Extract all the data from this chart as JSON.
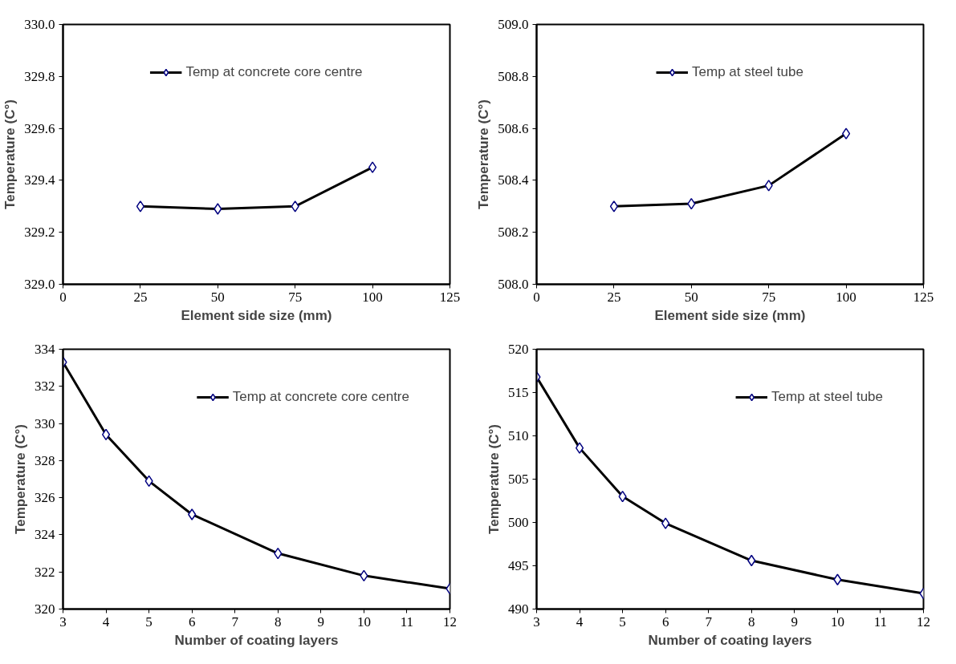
{
  "chart_data": [
    {
      "type": "line",
      "xlabel": "Element side size (mm)",
      "ylabel": "Temperature (C°)",
      "x": [
        25,
        50,
        75,
        100
      ],
      "series": [
        {
          "name": "Temp at concrete core centre",
          "color": "#000000",
          "values": [
            329.3,
            329.29,
            329.3,
            329.45
          ]
        }
      ],
      "xlim": [
        0,
        125
      ],
      "xticks": [
        0,
        25,
        50,
        75,
        100,
        125
      ],
      "ylim": [
        329.0,
        330.0
      ],
      "yticks": [
        {
          "value": 329.0,
          "label": "329.0"
        },
        {
          "value": 329.2,
          "label": "329.2"
        },
        {
          "value": 329.4,
          "label": "329.4"
        },
        {
          "value": 329.6,
          "label": "329.6"
        },
        {
          "value": 329.8,
          "label": "329.8"
        },
        {
          "value": 330.0,
          "label": "330.0"
        }
      ],
      "grid": false,
      "legend": "top",
      "marker": "diamond",
      "line_style": "solid"
    },
    {
      "type": "line",
      "xlabel": "Element side size (mm)",
      "ylabel": "Temperature (C°)",
      "x": [
        25,
        50,
        75,
        100
      ],
      "series": [
        {
          "name": "Temp at steel tube",
          "color": "#000000",
          "values": [
            508.3,
            508.31,
            508.38,
            508.58
          ]
        }
      ],
      "xlim": [
        0,
        125
      ],
      "xticks": [
        0,
        25,
        50,
        75,
        100,
        125
      ],
      "ylim": [
        508.0,
        509.0
      ],
      "yticks": [
        {
          "value": 508.0,
          "label": "508.0"
        },
        {
          "value": 508.2,
          "label": "508.2"
        },
        {
          "value": 508.4,
          "label": "508.4"
        },
        {
          "value": 508.6,
          "label": "508.6"
        },
        {
          "value": 508.8,
          "label": "508.8"
        },
        {
          "value": 509.0,
          "label": "509.0"
        }
      ],
      "grid": false,
      "legend": "top",
      "marker": "diamond",
      "line_style": "solid"
    },
    {
      "type": "line",
      "xlabel": "Number of coating layers",
      "ylabel": "Temperature (C°)",
      "x": [
        3,
        4,
        5,
        6,
        8,
        10,
        12
      ],
      "series": [
        {
          "name": "Temp at concrete core centre",
          "color": "#000000",
          "values": [
            333.3,
            329.4,
            326.9,
            325.1,
            323.0,
            321.8,
            321.1
          ]
        }
      ],
      "xlim": [
        3,
        12
      ],
      "xticks": [
        3,
        4,
        5,
        6,
        7,
        8,
        9,
        10,
        11,
        12
      ],
      "ylim": [
        320,
        334
      ],
      "yticks": [
        320,
        322,
        324,
        326,
        328,
        330,
        332,
        334
      ],
      "grid": false,
      "legend": "top right",
      "marker": "diamond",
      "line_style": "solid"
    },
    {
      "type": "line",
      "xlabel": "Number of coating layers",
      "ylabel": "Temperature (C°)",
      "x": [
        3,
        4,
        5,
        6,
        8,
        10,
        12
      ],
      "series": [
        {
          "name": "Temp at steel tube",
          "color": "#000000",
          "values": [
            516.8,
            508.6,
            503.0,
            499.9,
            495.6,
            493.4,
            491.8
          ]
        }
      ],
      "xlim": [
        3,
        12
      ],
      "xticks": [
        3,
        4,
        5,
        6,
        7,
        8,
        9,
        10,
        11,
        12
      ],
      "ylim": [
        490,
        520
      ],
      "yticks": [
        490,
        495,
        500,
        505,
        510,
        515,
        520
      ],
      "grid": false,
      "legend": "top right",
      "marker": "diamond",
      "line_style": "solid"
    }
  ]
}
